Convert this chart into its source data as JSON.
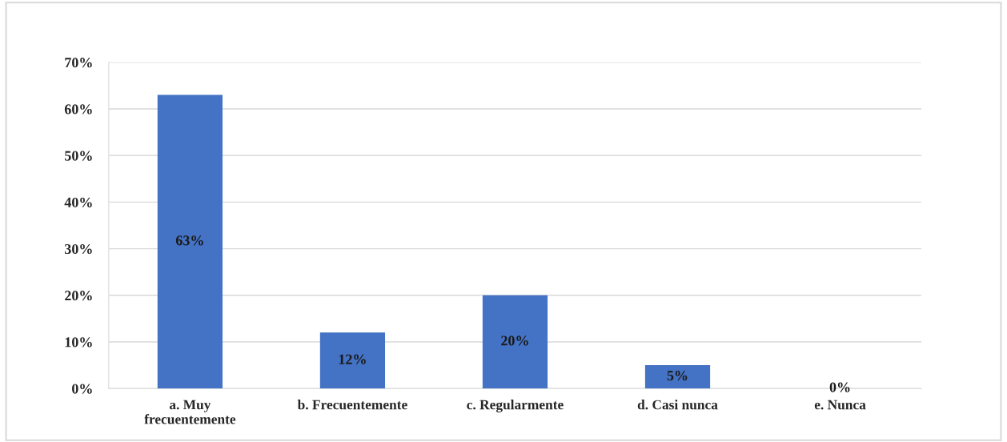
{
  "chart_data": {
    "type": "bar",
    "categories": [
      "a. Muy\nfrecuentemente",
      "b. Frecuentemente",
      "c. Regularmente",
      "d. Casi nunca",
      "e. Nunca"
    ],
    "values": [
      63,
      12,
      20,
      5,
      0
    ],
    "value_labels": [
      "63%",
      "12%",
      "20%",
      "5%",
      "0%"
    ],
    "color": "#4472c4",
    "ylim": [
      0,
      70
    ],
    "yticks": [
      {
        "value": 0,
        "label": "0%"
      },
      {
        "value": 10,
        "label": "10%"
      },
      {
        "value": 20,
        "label": "20%"
      },
      {
        "value": 30,
        "label": "30%"
      },
      {
        "value": 40,
        "label": "40%"
      },
      {
        "value": 50,
        "label": "50%"
      },
      {
        "value": 60,
        "label": "60%"
      },
      {
        "value": 70,
        "label": "70%"
      }
    ],
    "grid": "y",
    "legend": false
  }
}
